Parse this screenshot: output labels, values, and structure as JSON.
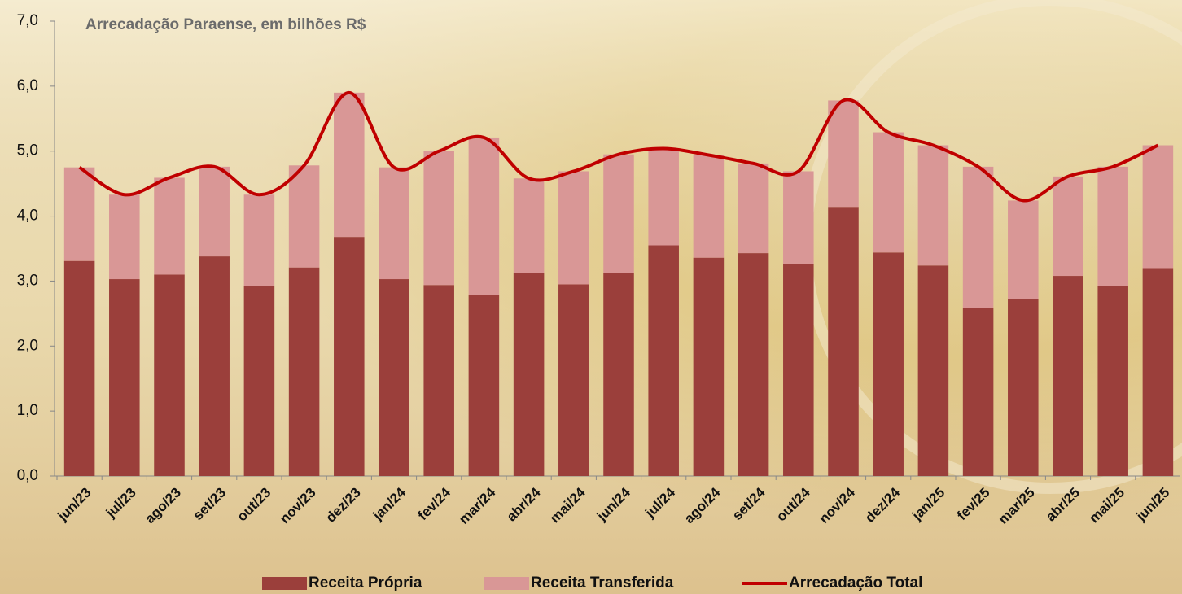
{
  "chart_data": {
    "type": "stacked-bar-line",
    "title": "Arrecadação Paraense, em bilhões R$",
    "categories": [
      "jun/23",
      "jul/23",
      "ago/23",
      "set/23",
      "out/23",
      "nov/23",
      "dez/23",
      "jan/24",
      "fev/24",
      "mar/24",
      "abr/24",
      "mai/24",
      "jun/24",
      "jul/24",
      "ago/24",
      "set/24",
      "out/24",
      "nov/24",
      "dez/24",
      "jan/25",
      "fev/25",
      "mar/25",
      "abr/25",
      "mai/25",
      "jun/25"
    ],
    "series": [
      {
        "name": "Receita Própria",
        "color": "#9b3f3b",
        "kind": "bar",
        "values": [
          3.31,
          3.03,
          3.1,
          3.38,
          2.93,
          3.21,
          3.68,
          3.03,
          2.94,
          2.79,
          3.13,
          2.95,
          3.13,
          3.55,
          3.36,
          3.43,
          3.26,
          4.13,
          3.44,
          3.24,
          2.59,
          2.73,
          3.08,
          2.93,
          3.2
        ]
      },
      {
        "name": "Receita Transferida",
        "color": "#d99796",
        "kind": "bar",
        "values": [
          1.44,
          1.3,
          1.49,
          1.38,
          1.4,
          1.57,
          2.22,
          1.72,
          2.06,
          2.42,
          1.45,
          1.74,
          1.82,
          1.49,
          1.58,
          1.38,
          1.43,
          1.65,
          1.85,
          1.85,
          2.17,
          1.51,
          1.53,
          1.83,
          1.89
        ]
      },
      {
        "name": "Arrecadação Total",
        "color": "#c00000",
        "kind": "line",
        "values": [
          4.75,
          4.33,
          4.59,
          4.76,
          4.33,
          4.78,
          5.9,
          4.75,
          5.0,
          5.21,
          4.58,
          4.69,
          4.95,
          5.04,
          4.94,
          4.81,
          4.69,
          5.78,
          5.29,
          5.09,
          4.76,
          4.24,
          4.61,
          4.76,
          5.09
        ]
      }
    ],
    "ylim": [
      0,
      7
    ],
    "yticks": [
      {
        "value": 0,
        "label": "0,0"
      },
      {
        "value": 1,
        "label": "1,0"
      },
      {
        "value": 2,
        "label": "2,0"
      },
      {
        "value": 3,
        "label": "3,0"
      },
      {
        "value": 4,
        "label": "4,0"
      },
      {
        "value": 5,
        "label": "5,0"
      },
      {
        "value": 6,
        "label": "6,0"
      },
      {
        "value": 7,
        "label": "7,0"
      }
    ],
    "grid": false,
    "legend": "bottom"
  }
}
